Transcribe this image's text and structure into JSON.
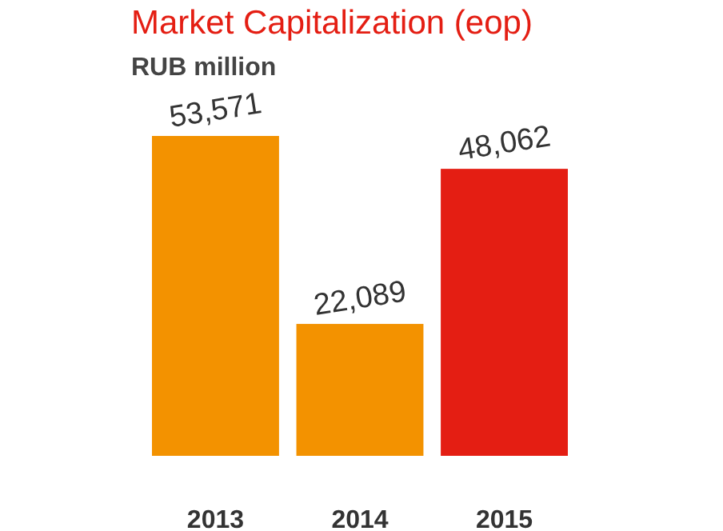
{
  "chart_data": {
    "type": "bar",
    "title": "Market Capitalization (eop)",
    "subtitle": "RUB million",
    "categories": [
      "2013",
      "2014",
      "2015"
    ],
    "values": [
      53571,
      22089,
      48062
    ],
    "colors": [
      "#f39200",
      "#f39200",
      "#e41e13"
    ],
    "value_labels": [
      "53,571",
      "22,089",
      "48,062"
    ]
  }
}
